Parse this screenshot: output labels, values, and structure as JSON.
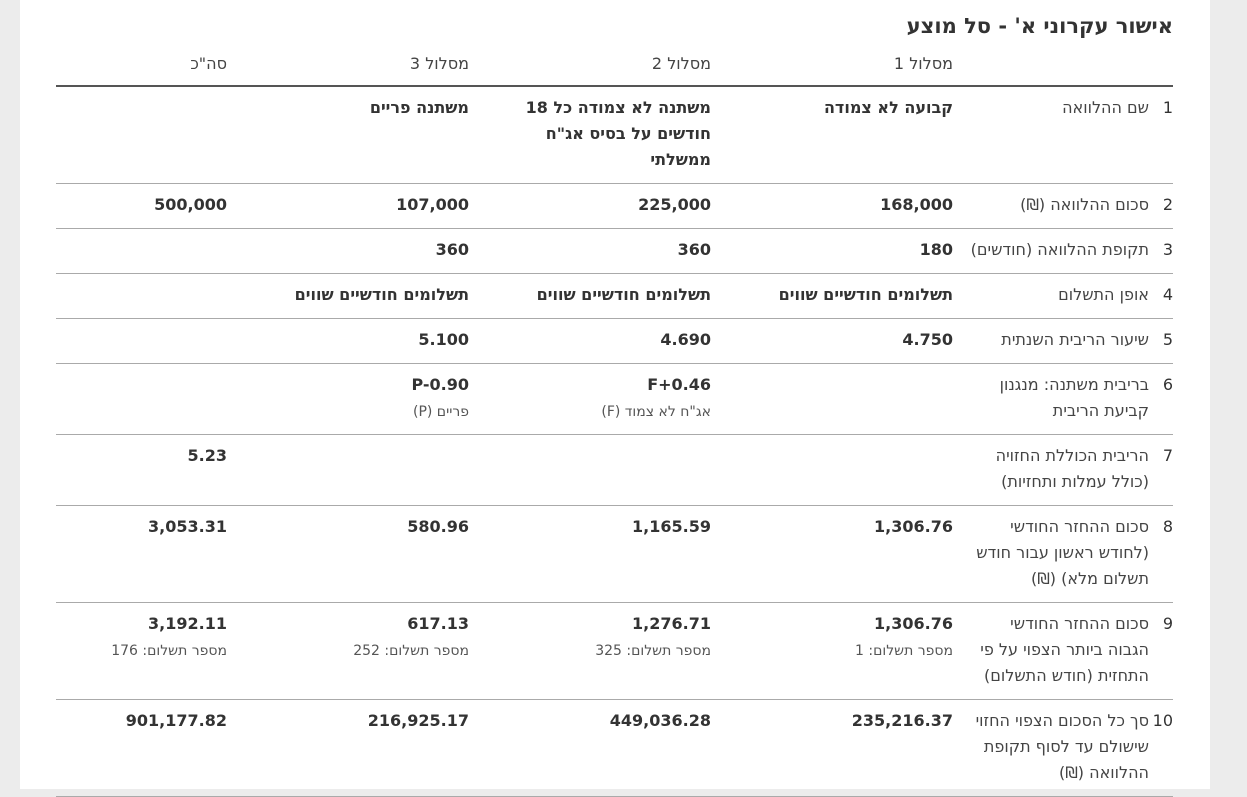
{
  "title": "אישור עקרוני א' - סל מוצע",
  "table": {
    "header": [
      "מסלול 1",
      "מסלול 2",
      "מסלול 3",
      "סה\"כ"
    ],
    "rows": [
      {
        "num": "1",
        "label": "שם ההלוואה",
        "cells": [
          {
            "value": "קבועה לא צמודה"
          },
          {
            "value": "משתנה לא צמודה כל 18 חודשים על בסיס אג\"ח ממשלתי"
          },
          {
            "value": "משתנה פריים"
          },
          null
        ]
      },
      {
        "num": "2",
        "label": "סכום ההלוואה (₪)",
        "cells": [
          {
            "value": "168,000"
          },
          {
            "value": "225,000"
          },
          {
            "value": "107,000"
          },
          {
            "value": "500,000"
          }
        ]
      },
      {
        "num": "3",
        "label": "תקופת ההלוואה (חודשים)",
        "cells": [
          {
            "value": "180"
          },
          {
            "value": "360"
          },
          {
            "value": "360"
          },
          null
        ]
      },
      {
        "num": "4",
        "label": "אופן התשלום",
        "cells": [
          {
            "value": "תשלומים חודשיים שווים"
          },
          {
            "value": "תשלומים חודשיים שווים"
          },
          {
            "value": "תשלומים חודשיים שווים"
          },
          null
        ]
      },
      {
        "num": "5",
        "label": "שיעור הריבית השנתית",
        "cells": [
          {
            "value": "4.750"
          },
          {
            "value": "4.690"
          },
          {
            "value": "5.100"
          },
          null
        ]
      },
      {
        "num": "6",
        "label": "בריבית משתנה: מנגנון קביעת הריבית",
        "cells": [
          null,
          {
            "value": "F+0.46",
            "note": "אג\"ח לא צמוד (F)"
          },
          {
            "value": "P-0.90",
            "note": "פריים (P)"
          },
          null
        ]
      },
      {
        "num": "7",
        "label": "הריבית הכוללת החזויה (כולל עמלות ותחזיות)",
        "cells": [
          null,
          null,
          null,
          {
            "value": "5.23"
          }
        ]
      },
      {
        "num": "8",
        "label": "סכום ההחזר החודשי (לחודש ראשון עבור חודש תשלום מלא) (₪)",
        "cells": [
          {
            "value": "1,306.76"
          },
          {
            "value": "1,165.59"
          },
          {
            "value": "580.96"
          },
          {
            "value": "3,053.31"
          }
        ]
      },
      {
        "num": "9",
        "label": "סכום ההחזר החודשי הגבוה ביותר הצפוי על פי התחזית (חודש התשלום)",
        "cells": [
          {
            "value": "1,306.76",
            "note": "מספר תשלום: 1"
          },
          {
            "value": "1,276.71",
            "note": "מספר תשלום: 325"
          },
          {
            "value": "617.13",
            "note": "מספר תשלום: 252"
          },
          {
            "value": "3,192.11",
            "note": "מספר תשלום: 176"
          }
        ]
      },
      {
        "num": "10",
        "label": "סך כל הסכום הצפוי החזוי שישולם עד לסוף תקופת ההלוואה (₪)",
        "cells": [
          {
            "value": "235,216.37"
          },
          {
            "value": "449,036.28"
          },
          {
            "value": "216,925.17"
          },
          {
            "value": "901,177.82"
          }
        ]
      }
    ]
  }
}
